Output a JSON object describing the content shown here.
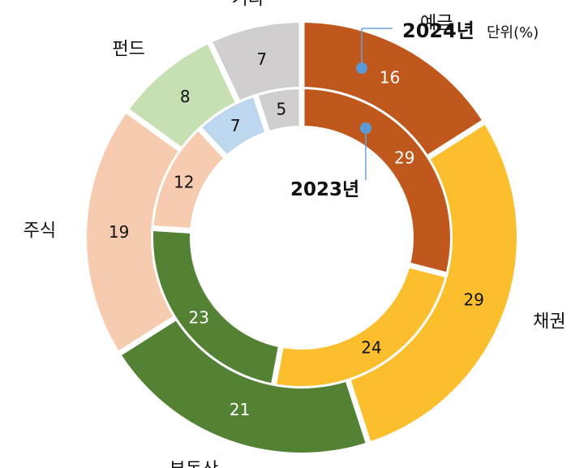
{
  "chart_data": {
    "type": "donut",
    "unit": "단위(%)",
    "categories": [
      "예금",
      "채권",
      "부동산",
      "주식",
      "펀드",
      "기타"
    ],
    "colors": [
      "#C0571C",
      "#FBBE2D",
      "#548235",
      "#F7CBAF",
      "#C6E0B4",
      "#D0CECE"
    ],
    "inner_extra": {
      "name": "",
      "value": 7,
      "color": "#BDD7EE"
    },
    "series": [
      {
        "name": "2024년",
        "ring": "outer",
        "values": [
          16,
          29,
          21,
          19,
          8,
          7
        ]
      },
      {
        "name": "2023년",
        "ring": "inner",
        "values": [
          29,
          24,
          23,
          12,
          7,
          5
        ]
      }
    ]
  }
}
